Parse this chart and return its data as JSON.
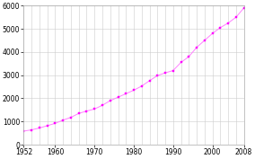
{
  "years": [
    1952,
    1954,
    1956,
    1958,
    1960,
    1962,
    1964,
    1966,
    1968,
    1970,
    1972,
    1974,
    1976,
    1978,
    1980,
    1982,
    1984,
    1986,
    1988,
    1990,
    1992,
    1994,
    1996,
    1998,
    2000,
    2002,
    2004,
    2006,
    2008
  ],
  "population": [
    586,
    640,
    720,
    820,
    920,
    1060,
    1180,
    1350,
    1450,
    1540,
    1700,
    1900,
    2050,
    2200,
    2350,
    2530,
    2760,
    2980,
    3100,
    3200,
    3550,
    3800,
    4200,
    4500,
    4800,
    5050,
    5250,
    5500,
    5900
  ],
  "line_color": "#ff80ff",
  "marker_color": "#ff00ff",
  "marker": "s",
  "marker_size": 2.0,
  "line_width": 0.7,
  "xlim": [
    1952,
    2008
  ],
  "ylim": [
    0,
    6000
  ],
  "xticks": [
    1952,
    1960,
    1970,
    1980,
    1990,
    2000,
    2008
  ],
  "yticks": [
    0,
    1000,
    2000,
    3000,
    4000,
    5000,
    6000
  ],
  "grid_color": "#cccccc",
  "bg_color": "#ffffff",
  "tick_fontsize": 5.5,
  "grid_major_every": 2
}
